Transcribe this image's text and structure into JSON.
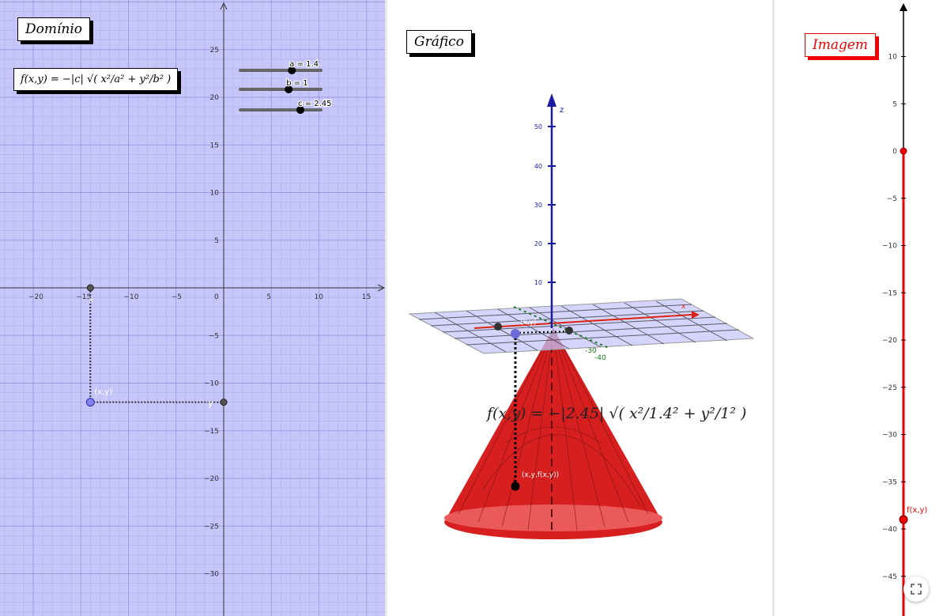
{
  "domain_view": {
    "title": "Domínio",
    "formula": "f(x,y) = −|c| √( x²/a² + y²/b² )",
    "x_ticks": [
      "−20",
      "−15",
      "−10",
      "−5",
      "0",
      "5",
      "10",
      "15"
    ],
    "y_ticks": [
      "25",
      "20",
      "15",
      "10",
      "5",
      "−5",
      "−10",
      "−15",
      "−20",
      "−25",
      "−30"
    ],
    "sliders": [
      {
        "name": "a",
        "label": "a = 1.4",
        "value": 1.4
      },
      {
        "name": "b",
        "label": "b = 1",
        "value": 1
      },
      {
        "name": "c",
        "label": "c = 2.45",
        "value": 2.45
      }
    ],
    "point_label": "(x,y)",
    "x_marker_label": "x",
    "y_marker_label": "y",
    "point": {
      "x": -14,
      "y": -12
    },
    "background": "#c6c6fb"
  },
  "graph_view": {
    "title": "Gráfico",
    "formula": "f(x,y) = −|2.45| √( x²/1.4² + y²/1² )",
    "z_label": "z",
    "x_label": "x",
    "z_ticks": [
      "50",
      "40",
      "30",
      "20",
      "10"
    ],
    "y_axis_ticks": [
      "-30",
      "-40"
    ],
    "point_xy_label": "(x,y)",
    "point_xyz_label": "(x,y,f(x,y))",
    "surface_color": "#d81f1f"
  },
  "image_view": {
    "title": "Imagem",
    "ticks": [
      "10",
      "5",
      "0",
      "−5",
      "−10",
      "−15",
      "−20",
      "−25",
      "−30",
      "−35",
      "−40",
      "−45"
    ],
    "point_label": "f(x,y)",
    "point_value": -39,
    "accent": "#ff0000"
  },
  "fullscreen_icon": "fullscreen-icon"
}
